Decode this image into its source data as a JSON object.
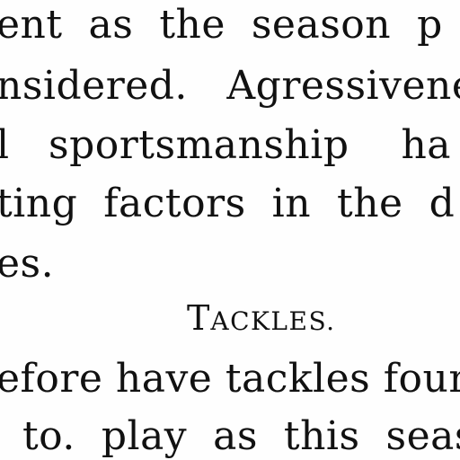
{
  "document": {
    "lines": [
      "ent  as  the  season  p",
      "nsidered.   Agressivene",
      "l   sportsmanship    ha",
      "ting  factors  in  the  d",
      "es."
    ],
    "heading": {
      "initial": "T",
      "rest": "ACKLES."
    },
    "lines_after": [
      "efore have tackles foun",
      "  to.  play  as  this  seas"
    ]
  }
}
